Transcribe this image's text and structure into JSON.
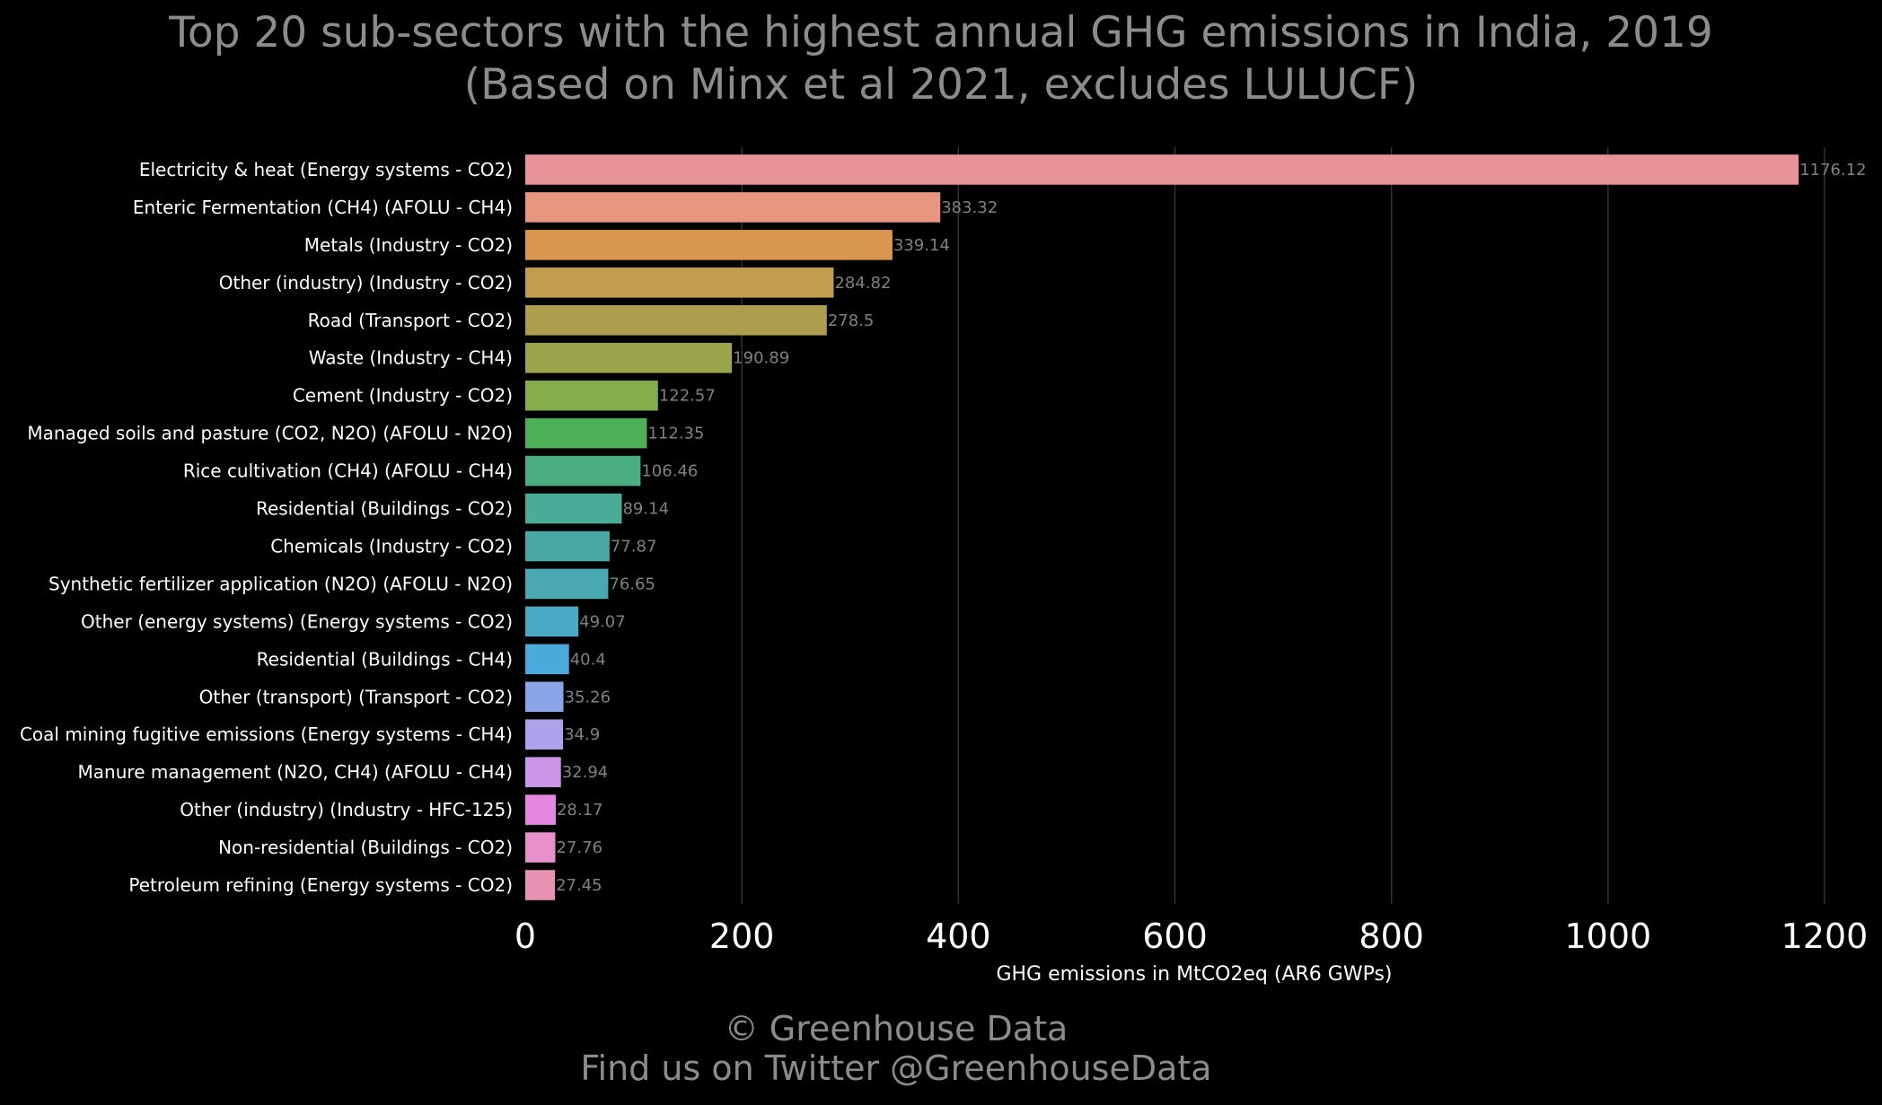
{
  "chart_data": {
    "type": "bar",
    "orientation": "horizontal",
    "title": "Top 20 sub-sectors with the highest annual GHG emissions in India, 2019",
    "subtitle": "(Based on Minx et al 2021, excludes LULUCF)",
    "xlabel": "GHG emissions in MtCO2eq (AR6 GWPs)",
    "ylabel": "",
    "xlim": [
      0,
      1200
    ],
    "xticks": [
      "0",
      "200",
      "400",
      "600",
      "800",
      "1000",
      "1200"
    ],
    "grid": "vertical",
    "categories": [
      "Electricity & heat (Energy systems - CO2)",
      "Enteric Fermentation (CH4) (AFOLU - CH4)",
      "Metals (Industry - CO2)",
      "Other (industry) (Industry - CO2)",
      "Road (Transport - CO2)",
      "Waste (Industry - CH4)",
      "Cement (Industry - CO2)",
      "Managed soils and pasture (CO2, N2O) (AFOLU - N2O)",
      "Rice cultivation (CH4) (AFOLU - CH4)",
      "Residential (Buildings - CO2)",
      "Chemicals (Industry - CO2)",
      "Synthetic fertilizer application (N2O) (AFOLU - N2O)",
      "Other (energy systems) (Energy systems - CO2)",
      "Residential (Buildings - CH4)",
      "Other (transport) (Transport - CO2)",
      "Coal mining fugitive emissions (Energy systems - CH4)",
      "Manure management (N2O, CH4) (AFOLU - CH4)",
      "Other (industry) (Industry - HFC-125)",
      "Non-residential (Buildings - CO2)",
      "Petroleum refining (Energy systems - CO2)"
    ],
    "values": [
      1176.12,
      383.32,
      339.14,
      284.82,
      278.5,
      190.89,
      122.57,
      112.35,
      106.46,
      89.14,
      77.87,
      76.65,
      49.07,
      40.4,
      35.26,
      34.9,
      32.94,
      28.17,
      27.76,
      27.45
    ],
    "value_labels": [
      "1176.12",
      "383.32",
      "339.14",
      "284.82",
      "278.5",
      "190.89",
      "122.57",
      "112.35",
      "106.46",
      "89.14",
      "77.87",
      "76.65",
      "49.07",
      "40.4",
      "35.26",
      "34.9",
      "32.94",
      "28.17",
      "27.76",
      "27.45"
    ],
    "colors": [
      "#e8939a",
      "#e8967f",
      "#d9964f",
      "#c29d4f",
      "#ac9e4c",
      "#9aa44c",
      "#85ad4c",
      "#4daf56",
      "#4bae82",
      "#4aab98",
      "#49a9a5",
      "#4aa8b2",
      "#4aa9c6",
      "#4aaadc",
      "#8aa6e8",
      "#afa2ec",
      "#cd95e8",
      "#e586e0",
      "#e98fcc",
      "#e893b3"
    ]
  },
  "colors": {
    "background": "#000000",
    "text": "#8c8c8c",
    "label_text": "#ffffff",
    "value_text": "#808080",
    "grid": "#333333"
  },
  "footer": {
    "line1": "© Greenhouse Data",
    "line2": "Find us on Twitter @GreenhouseData"
  }
}
